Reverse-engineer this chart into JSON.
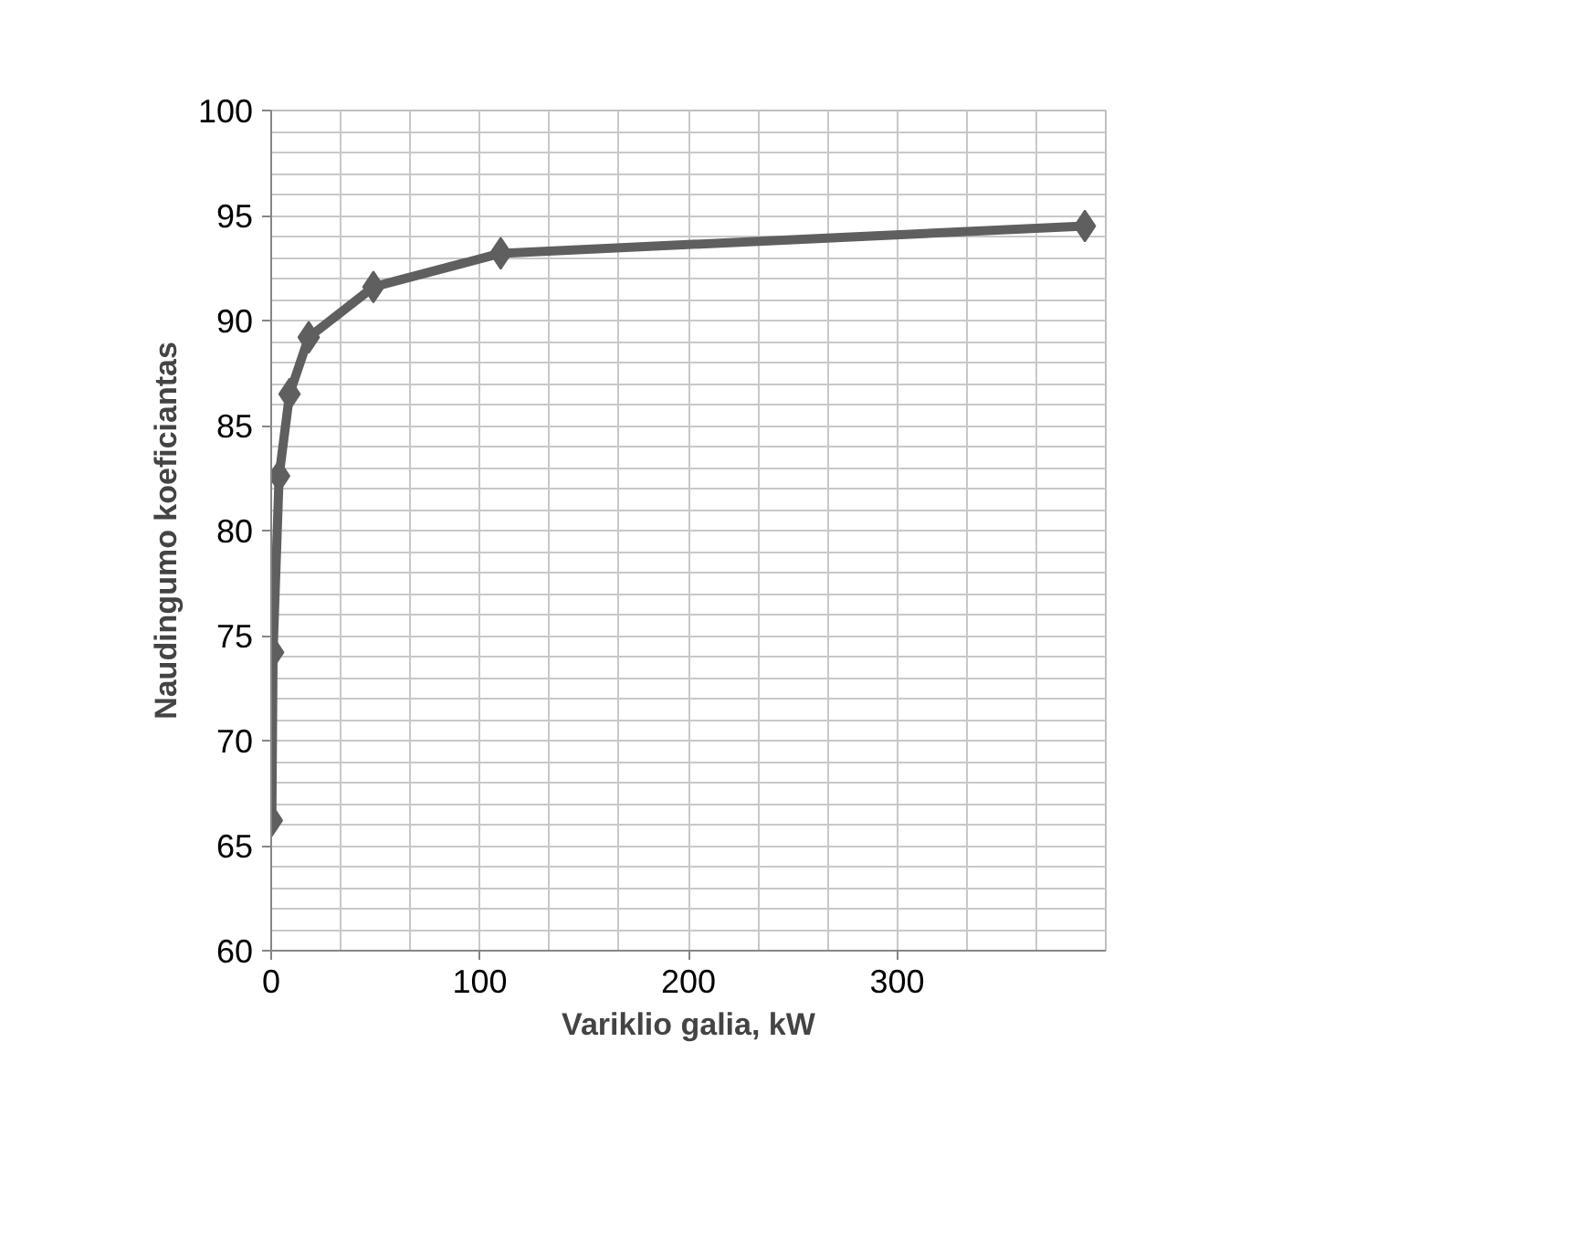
{
  "chart_data": {
    "type": "line",
    "xlabel": "Variklio galia, kW",
    "ylabel": "Naudingumo koeficiantas",
    "x": [
      0.3,
      0.9,
      3.8,
      8.8,
      18,
      49,
      110,
      390
    ],
    "series": [
      {
        "color": "#5f5f5f",
        "values": [
          66.2,
          74.2,
          82.6,
          86.5,
          89.2,
          91.6,
          93.2,
          94.5
        ]
      }
    ],
    "xlim": [
      0,
      400
    ],
    "ylim": [
      60,
      100
    ],
    "xticks": [
      0,
      {
        "value": 33.3,
        "label": null
      },
      {
        "value": 66.7,
        "label": null
      },
      100,
      {
        "value": 133.3,
        "label": null
      },
      {
        "value": 166.7,
        "label": null
      },
      200,
      {
        "value": 233.3,
        "label": null
      },
      {
        "value": 266.7,
        "label": null
      },
      300,
      {
        "value": 333.3,
        "label": null
      },
      {
        "value": 366.7,
        "label": null
      },
      {
        "value": 400,
        "label": null
      }
    ],
    "yticks": [
      60,
      {
        "value": 61,
        "label": null
      },
      {
        "value": 62,
        "label": null
      },
      {
        "value": 63,
        "label": null
      },
      {
        "value": 64,
        "label": null
      },
      65,
      {
        "value": 66,
        "label": null
      },
      {
        "value": 67,
        "label": null
      },
      {
        "value": 68,
        "label": null
      },
      {
        "value": 69,
        "label": null
      },
      70,
      {
        "value": 71,
        "label": null
      },
      {
        "value": 72,
        "label": null
      },
      {
        "value": 73,
        "label": null
      },
      {
        "value": 74,
        "label": null
      },
      75,
      {
        "value": 76,
        "label": null
      },
      {
        "value": 77,
        "label": null
      },
      {
        "value": 78,
        "label": null
      },
      {
        "value": 79,
        "label": null
      },
      80,
      {
        "value": 81,
        "label": null
      },
      {
        "value": 82,
        "label": null
      },
      {
        "value": 83,
        "label": null
      },
      {
        "value": 84,
        "label": null
      },
      85,
      {
        "value": 86,
        "label": null
      },
      {
        "value": 87,
        "label": null
      },
      {
        "value": 88,
        "label": null
      },
      {
        "value": 89,
        "label": null
      },
      90,
      {
        "value": 91,
        "label": null
      },
      {
        "value": 92,
        "label": null
      },
      {
        "value": 93,
        "label": null
      },
      {
        "value": 94,
        "label": null
      },
      95,
      {
        "value": 96,
        "label": null
      },
      {
        "value": 97,
        "label": null
      },
      {
        "value": 98,
        "label": null
      },
      {
        "value": 99,
        "label": null
      },
      100
    ],
    "grid": true,
    "marker": "diamond",
    "line_style": "solid"
  }
}
